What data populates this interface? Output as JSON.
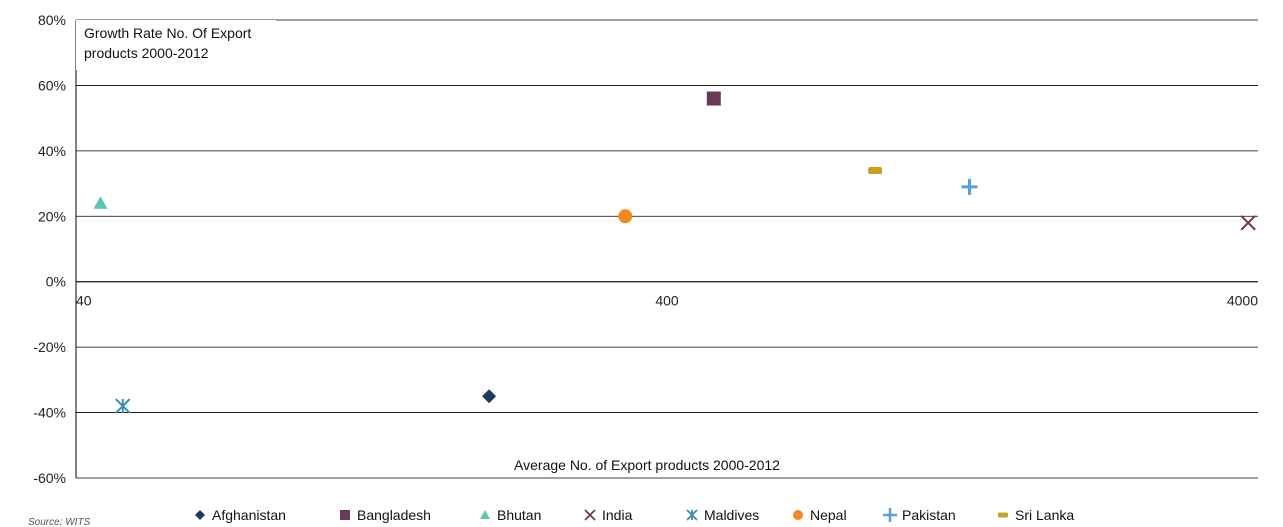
{
  "chart_data": {
    "type": "scatter",
    "title": "Growth Rate No. Of Export products 2000-2012",
    "title_lines": [
      "Growth Rate No. Of Export",
      "products 2000-2012"
    ],
    "xlabel": "Average No. of Export products 2000-2012",
    "ylabel": "",
    "x_scale": "log",
    "xlim": [
      40,
      4000
    ],
    "ylim": [
      -60,
      80
    ],
    "x_ticks": [
      40,
      400,
      4000
    ],
    "x_tick_labels": [
      "40",
      "400",
      "4000"
    ],
    "y_ticks": [
      -60,
      -40,
      -20,
      0,
      20,
      40,
      60,
      80
    ],
    "y_tick_labels": [
      "-60%",
      "-40%",
      "-20%",
      "0%",
      "20%",
      "40%",
      "60%",
      "80%"
    ],
    "grid": "horizontal",
    "legend_position": "bottom",
    "series": [
      {
        "name": "Afghanistan",
        "marker": "diamond",
        "color": "#1f3a5f",
        "x": 200,
        "y": -35
      },
      {
        "name": "Bangladesh",
        "marker": "square",
        "color": "#6b3a55",
        "x": 480,
        "y": 56
      },
      {
        "name": "Bhutan",
        "marker": "triangle",
        "color": "#5fc4b0",
        "x": 44,
        "y": 24
      },
      {
        "name": "India",
        "marker": "x",
        "color": "#6b3a55",
        "x": 3850,
        "y": 18
      },
      {
        "name": "Maldives",
        "marker": "asterisk",
        "color": "#3a8fb0",
        "x": 48,
        "y": -38
      },
      {
        "name": "Nepal",
        "marker": "circle",
        "color": "#f08a1e",
        "x": 340,
        "y": 20
      },
      {
        "name": "Pakistan",
        "marker": "plus",
        "color": "#5a9fd8",
        "x": 1300,
        "y": 29
      },
      {
        "name": "Sri Lanka",
        "marker": "dash",
        "color": "#c9a020",
        "x": 900,
        "y": 34
      }
    ]
  },
  "source_text": "Source: WITS"
}
